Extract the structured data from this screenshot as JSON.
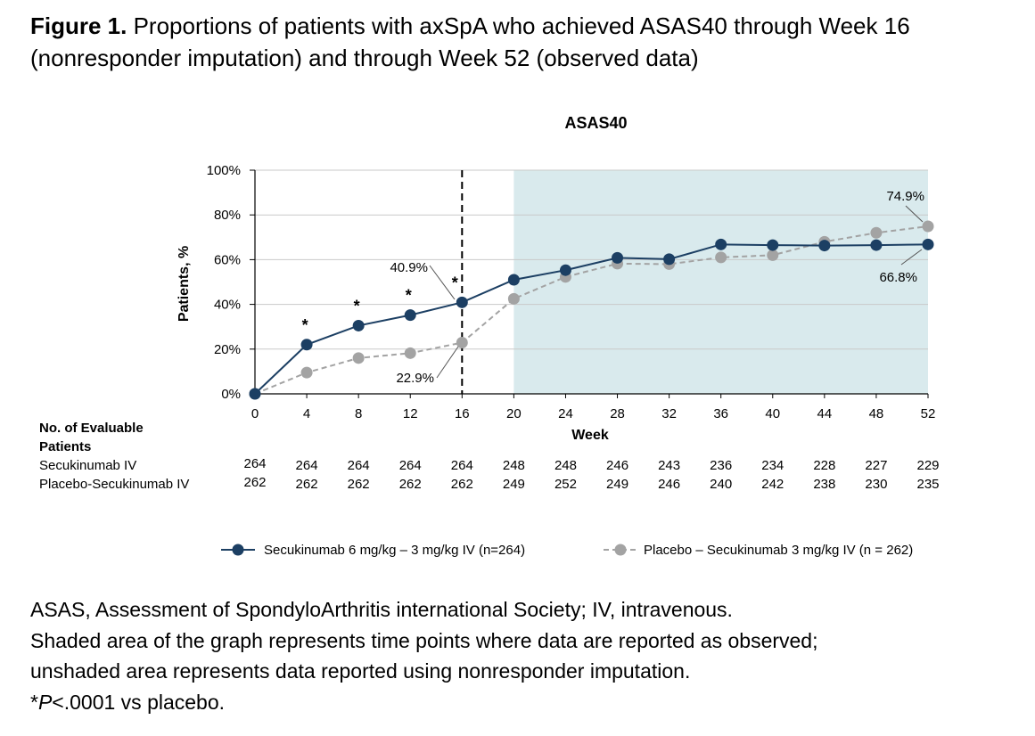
{
  "caption": {
    "label": "Figure 1.",
    "text": "Proportions of patients with axSpA who achieved ASAS40 through Week 16 (nonresponder imputation) and through Week 52 (observed data)"
  },
  "chart_data": {
    "type": "line",
    "title": "ASAS40",
    "xlabel": "Week",
    "ylabel": "Patients, %",
    "x": [
      0,
      4,
      8,
      12,
      16,
      20,
      24,
      28,
      32,
      36,
      40,
      44,
      48,
      52
    ],
    "x_tick_labels": [
      "0",
      "4",
      "8",
      "12",
      "16",
      "20",
      "24",
      "28",
      "32",
      "36",
      "40",
      "44",
      "48",
      "52"
    ],
    "xlim": [
      0,
      52
    ],
    "ylim": [
      0,
      100
    ],
    "y_ticks": [
      0,
      20,
      40,
      60,
      80,
      100
    ],
    "y_tick_labels": [
      "0%",
      "20%",
      "40%",
      "60%",
      "80%",
      "100%"
    ],
    "grid": true,
    "shaded_region_x": [
      20,
      52
    ],
    "reference_line_x": 16,
    "series": [
      {
        "name": "Secukinumab  6 mg/kg  – 3 mg/kg  IV (n=264)",
        "color": "#1c3f63",
        "line_style": "solid",
        "values": [
          0,
          22,
          30.5,
          35.2,
          40.9,
          51,
          55.3,
          60.8,
          60.2,
          66.8,
          66.5,
          66.3,
          66.5,
          66.8
        ]
      },
      {
        "name": "Placebo – Secukinumab  3 mg/kg  IV (n = 262)",
        "color": "#a3a3a3",
        "line_style": "dashed",
        "values": [
          0,
          9.5,
          16,
          18.2,
          22.9,
          42.5,
          52.3,
          58.2,
          58,
          61,
          62,
          68,
          72,
          74.9
        ]
      }
    ],
    "significance_markers": [
      {
        "x": 4,
        "y": 22,
        "text": "*"
      },
      {
        "x": 8,
        "y": 30.5,
        "text": "*"
      },
      {
        "x": 12,
        "y": 35.2,
        "text": "*"
      },
      {
        "x": 16,
        "y": 40.9,
        "text": "*"
      }
    ],
    "annotations": [
      {
        "text": "40.9%",
        "series": 0,
        "x": 16,
        "y": 40.9
      },
      {
        "text": "22.9%",
        "series": 1,
        "x": 16,
        "y": 22.9
      },
      {
        "text": "74.9%",
        "series": 1,
        "x": 52,
        "y": 74.9
      },
      {
        "text": "66.8%",
        "series": 0,
        "x": 52,
        "y": 66.8
      }
    ],
    "evaluable_patients": {
      "header": [
        "No. of Evaluable",
        "Patients"
      ],
      "rows": [
        {
          "label": "Secukinumab IV",
          "values": [
            "264",
            "264",
            "264",
            "264",
            "264",
            "248",
            "248",
            "246",
            "243",
            "236",
            "234",
            "228",
            "227",
            "229"
          ]
        },
        {
          "label": "Placebo-Secukinumab IV",
          "values": [
            "262",
            "262",
            "262",
            "262",
            "262",
            "249",
            "252",
            "249",
            "246",
            "240",
            "242",
            "238",
            "230",
            "235"
          ]
        }
      ]
    }
  },
  "footnotes": {
    "line1": "ASAS, Assessment of SpondyloArthritis international Society; IV, intravenous.",
    "line2": "Shaded area of the graph represents time points where data are reported as observed;",
    "line3": "unshaded area represents data reported using nonresponder imputation.",
    "line4_star": "*",
    "line4_p": "P",
    "line4_rest": "<.0001 vs placebo."
  }
}
